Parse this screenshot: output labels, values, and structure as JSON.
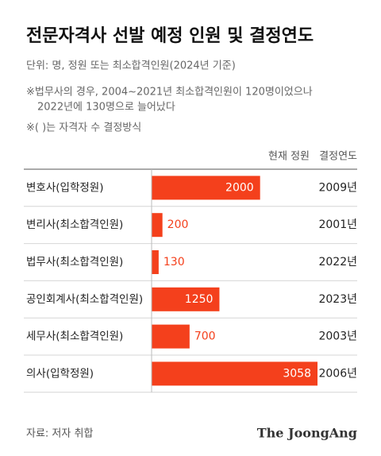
{
  "chart_data": {
    "type": "bar",
    "title": "전문자격사 선발 예정 인원 및 결정연도",
    "subtitle": "단위: 명, 정원 또는 최소합격인원(2024년 기준)",
    "notes": [
      "※법무사의 경우, 2004~2021년 최소합격인원이 120명이었으나",
      "2022년에 130명으로 늘어났다",
      "※( )는 자격자 수 결정방식"
    ],
    "column_headers": [
      "현재 정원",
      "결정연도"
    ],
    "categories": [
      "변호사(입학정원)",
      "변리사(최소합격인원)",
      "법무사(최소합격인원)",
      "공인회계사(최소합격인원)",
      "세무사(최소합격인원)",
      "의사(입학정원)"
    ],
    "values": [
      2000,
      200,
      130,
      1250,
      700,
      3058
    ],
    "decision_years": [
      "2009년",
      "2001년",
      "2022년",
      "2023년",
      "2003년",
      "2006년"
    ],
    "color": "#f4401c",
    "source": "자료: 저자 취합",
    "brand": "The JoongAng"
  }
}
